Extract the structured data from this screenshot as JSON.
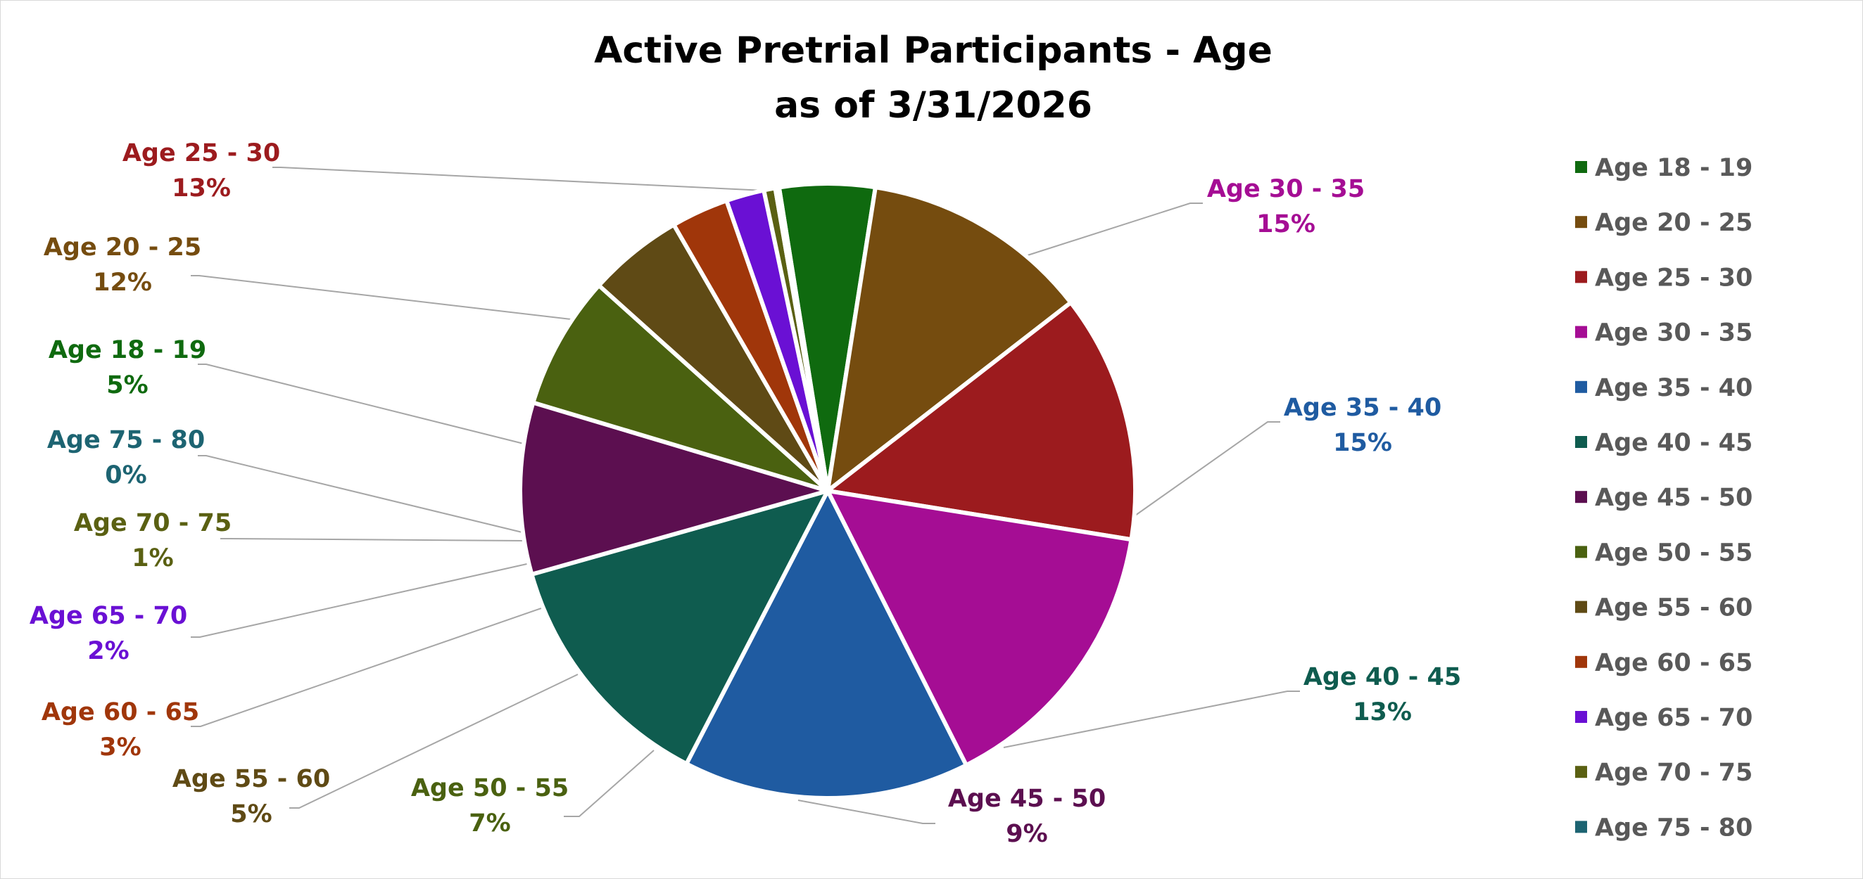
{
  "chart_data": {
    "type": "pie",
    "title_line1": "Active Pretrial Participants - Age",
    "title_line2": "as of 3/31/2026",
    "legend_position": "right",
    "slices": [
      {
        "name": "Age 18 - 19",
        "value": 5,
        "label": "5%",
        "color": "#0f6a0f"
      },
      {
        "name": "Age 20 - 25",
        "value": 12,
        "label": "12%",
        "color": "#754c0f"
      },
      {
        "name": "Age 25 - 30",
        "value": 13,
        "label": "13%",
        "color": "#9c1b1e"
      },
      {
        "name": "Age 30 - 35",
        "value": 15,
        "label": "15%",
        "color": "#a50d94"
      },
      {
        "name": "Age 35 - 40",
        "value": 15,
        "label": "15%",
        "color": "#1f5ba1"
      },
      {
        "name": "Age 40 - 45",
        "value": 13,
        "label": "13%",
        "color": "#0f5c4f"
      },
      {
        "name": "Age 45 - 50",
        "value": 9,
        "label": "9%",
        "color": "#5c0f50"
      },
      {
        "name": "Age 50 - 55",
        "value": 7,
        "label": "7%",
        "color": "#4a6110"
      },
      {
        "name": "Age 55 - 60",
        "value": 5,
        "label": "5%",
        "color": "#5f4a15"
      },
      {
        "name": "Age 60 - 65",
        "value": 3,
        "label": "3%",
        "color": "#a0360a"
      },
      {
        "name": "Age 65 - 70",
        "value": 2,
        "label": "2%",
        "color": "#6a10d4"
      },
      {
        "name": "Age 70 - 75",
        "value": 0.6,
        "label": "1%",
        "color": "#5a6012"
      },
      {
        "name": "Age 75 - 80",
        "value": 0.2,
        "label": "0%",
        "color": "#1d6472"
      }
    ],
    "label_colors": {
      "Age 18 - 19": "#0f6a0f",
      "Age 20 - 25": "#754c0f",
      "Age 25 - 30": "#9c1b1e",
      "Age 30 - 35": "#a50d94",
      "Age 35 - 40": "#1f5ba1",
      "Age 40 - 45": "#0f5c4f",
      "Age 45 - 50": "#5c0f50",
      "Age 50 - 55": "#4a6110",
      "Age 55 - 60": "#5f4a15",
      "Age 60 - 65": "#a0360a",
      "Age 65 - 70": "#6a10d4",
      "Age 70 - 75": "#5a6012",
      "Age 75 - 80": "#1d6472"
    }
  }
}
